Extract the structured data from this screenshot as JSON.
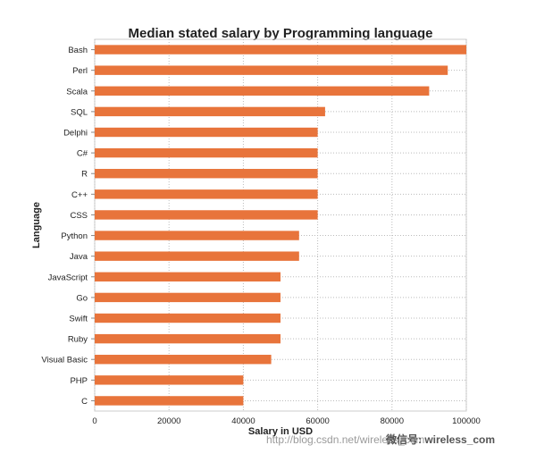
{
  "chart_data": {
    "type": "bar",
    "orientation": "horizontal",
    "title": "Median stated salary by Programming language",
    "xlabel": "Salary in USD",
    "ylabel": "Language",
    "categories": [
      "Bash",
      "Perl",
      "Scala",
      "SQL",
      "Delphi",
      "C#",
      "R",
      "C++",
      "CSS",
      "Python",
      "Java",
      "JavaScript",
      "Go",
      "Swift",
      "Ruby",
      "Visual Basic",
      "PHP",
      "C"
    ],
    "values": [
      100000,
      95000,
      90000,
      62000,
      60000,
      60000,
      60000,
      60000,
      60000,
      55000,
      55000,
      50000,
      50000,
      50000,
      50000,
      47500,
      40000,
      40000
    ],
    "xlim": [
      0,
      100000
    ],
    "xticks": [
      0,
      20000,
      40000,
      60000,
      80000,
      100000
    ],
    "xtick_labels": [
      "0",
      "20000",
      "40000",
      "60000",
      "80000",
      "100000"
    ],
    "grid": "dotted",
    "bar_color": "#E8743B"
  },
  "watermark": {
    "url": "http://blog.csdn.net/wireless_com",
    "account": "微信号: wireless_com"
  }
}
